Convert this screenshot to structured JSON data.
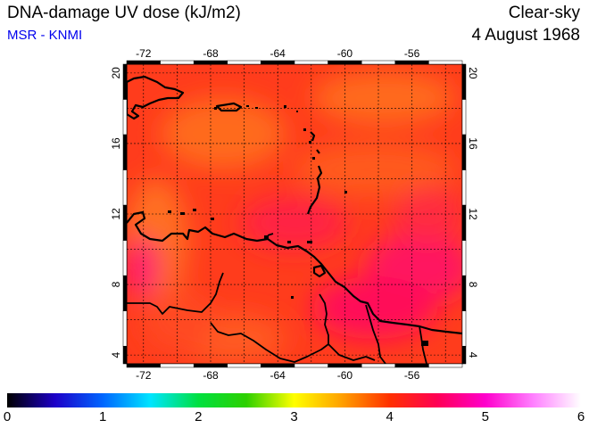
{
  "header": {
    "title": "DNA-damage UV dose (kJ/m2)",
    "subtitle": "MSR - KNMI",
    "condition": "Clear-sky",
    "date": "4 August 1968"
  },
  "map": {
    "lon_range": [
      -73,
      -53
    ],
    "lat_range": [
      3.5,
      20.5
    ],
    "lon_ticks": [
      "-72",
      "-68",
      "-64",
      "-60",
      "-56"
    ],
    "lat_ticks": [
      "4",
      "8",
      "12",
      "16",
      "20"
    ],
    "gridlines": true,
    "dominant_value_range": [
      4.2,
      5.2
    ]
  },
  "colorbar": {
    "ticks": [
      "0",
      "1",
      "2",
      "3",
      "4",
      "5",
      "6"
    ],
    "range": [
      0,
      6
    ],
    "colors": [
      "#000000",
      "#1d00c8",
      "#0066ff",
      "#00e5ff",
      "#00e040",
      "#2dd000",
      "#ffff00",
      "#ffa000",
      "#ff3000",
      "#ff0055",
      "#ff00cc",
      "#ff80ff",
      "#ffffff"
    ]
  }
}
